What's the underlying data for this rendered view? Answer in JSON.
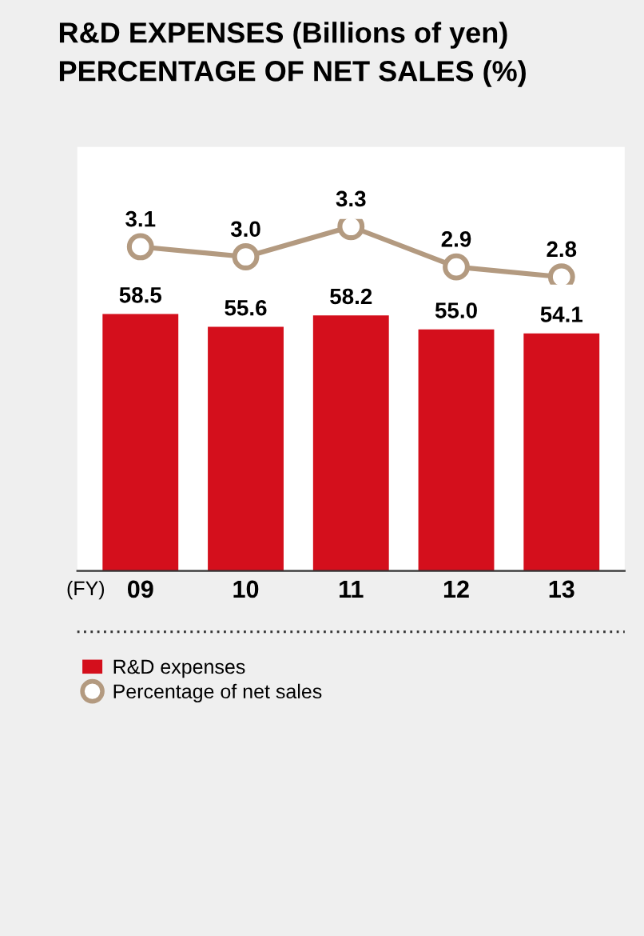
{
  "chart_data": [
    {
      "type": "bar",
      "xlabel": "(FY)",
      "categories": [
        "09",
        "10",
        "11",
        "12",
        "13"
      ],
      "series": [
        {
          "name": "R&D expenses",
          "color": "#d40f1c",
          "values": [
            58.5,
            55.6,
            58.2,
            55.0,
            54.1
          ],
          "value_labels": [
            "58.5",
            "55.6",
            "58.2",
            "55.0",
            "54.1"
          ]
        }
      ],
      "legend": "bottom"
    },
    {
      "type": "line",
      "title": "R&D EXPENSES (Billions of yen)",
      "subtitle": "PERCENTAGE OF NET SALES (%)",
      "categories": [
        "09",
        "10",
        "11",
        "12",
        "13"
      ],
      "tick_labels": false,
      "marker": "circle",
      "series": [
        {
          "name": "Percentage of net sales",
          "color": "#b39a80",
          "values": [
            3.1,
            3.0,
            3.3,
            2.9,
            2.8
          ],
          "value_labels": [
            "3.1",
            "3.0",
            "3.3",
            "2.9",
            "2.8"
          ]
        }
      ],
      "legend": "bottom"
    }
  ]
}
